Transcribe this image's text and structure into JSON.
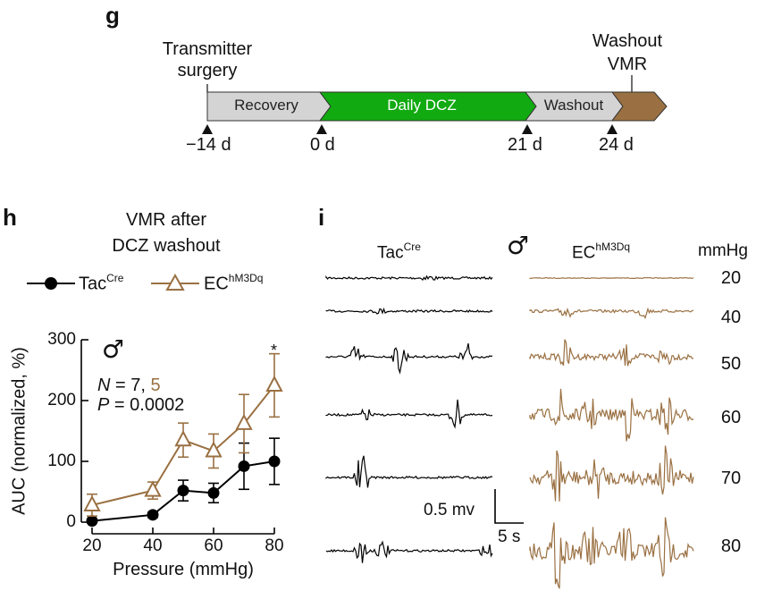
{
  "panel_g": {
    "letter": "g",
    "label_transmitter": [
      "Transmitter",
      "surgery"
    ],
    "label_washout_vmr": [
      "Washout",
      "VMR"
    ],
    "phases": [
      {
        "label": "Recovery",
        "color": "#d4d4d4"
      },
      {
        "label": "Daily DCZ",
        "color": "#11aa11"
      },
      {
        "label": "Washout",
        "color": "#d4d4d4"
      },
      {
        "label": "",
        "color": "#9a7042"
      }
    ],
    "days": [
      "−14 d",
      "0 d",
      "21 d",
      "24 d"
    ]
  },
  "panel_h": {
    "letter": "h",
    "title": [
      "VMR after",
      "DCZ washout"
    ],
    "legend": [
      {
        "base": "Tac",
        "sup": "Cre",
        "marker": "filled-circle",
        "color": "#000000"
      },
      {
        "base": "EC",
        "sup": "hM3Dq",
        "marker": "open-triangle",
        "color": "#9a7042"
      }
    ],
    "male_symbol": "♂",
    "stats": {
      "n_label": "N",
      "n_eq": " = 7, ",
      "n_second": "5",
      "p_label": "P",
      "p_eq": " = 0.0002"
    },
    "significance": "*"
  },
  "chart_data": {
    "type": "line",
    "title": "VMR after DCZ washout",
    "xlabel": "Pressure (mmHg)",
    "ylabel": "AUC (normalized, %)",
    "x": [
      20,
      40,
      50,
      60,
      70,
      80
    ],
    "xticks": [
      "20",
      "40",
      "60",
      "80"
    ],
    "yticks": [
      "0",
      "100",
      "200",
      "300"
    ],
    "xlim": [
      20,
      80
    ],
    "ylim": [
      0,
      300
    ],
    "series": [
      {
        "name": "TacCre",
        "color": "#000000",
        "marker": "circle",
        "values": [
          2,
          12,
          52,
          48,
          92,
          100
        ],
        "errors": [
          2,
          4,
          17,
          16,
          38,
          38
        ]
      },
      {
        "name": "ECHM3Dq",
        "color": "#9a7042",
        "marker": "triangle",
        "values": [
          28,
          52,
          135,
          117,
          162,
          225
        ],
        "errors": [
          18,
          14,
          28,
          28,
          48,
          52
        ]
      }
    ]
  },
  "panel_i": {
    "letter": "i",
    "col_left": {
      "base": "Tac",
      "sup": "Cre"
    },
    "col_right": {
      "base": "EC",
      "sup": "hM3Dq"
    },
    "male_symbol": "♂",
    "unit_header": "mmHg",
    "pressures": [
      "20",
      "40",
      "50",
      "60",
      "70",
      "80"
    ],
    "scale_voltage": "0.5 mv",
    "scale_time": "5 s",
    "trace_colors": {
      "tac": "#000000",
      "ec": "#9a7042"
    }
  }
}
